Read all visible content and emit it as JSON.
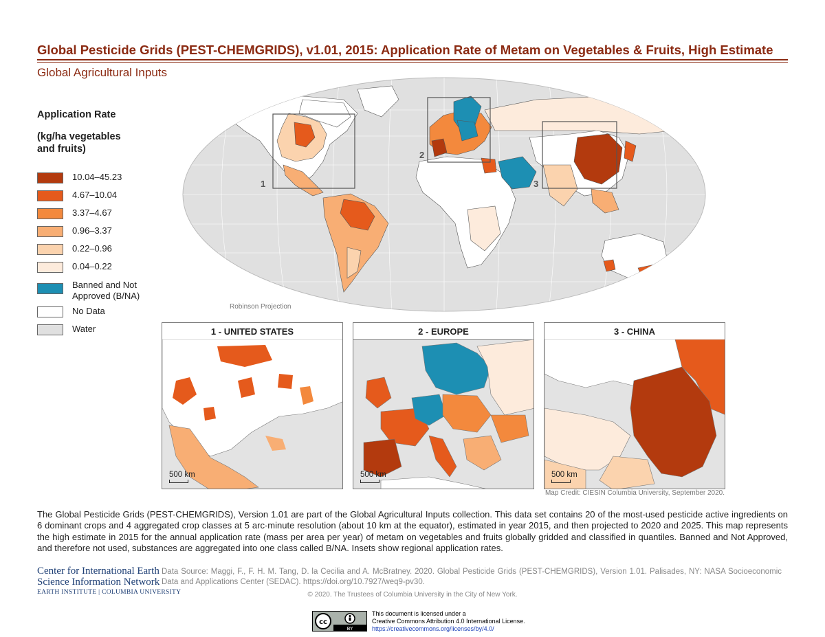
{
  "title": "Global Pesticide Grids (PEST-CHEMGRIDS), v1.01, 2015: Application Rate of Metam on Vegetables & Fruits, High Estimate",
  "subtitle": "Global Agricultural Inputs",
  "legend": {
    "title": "Application Rate",
    "unit": "(kg/ha vegetables and fruits)",
    "items": [
      {
        "label": "10.04–45.23",
        "color": "#b33a0e"
      },
      {
        "label": "4.67–10.04",
        "color": "#e55a1c"
      },
      {
        "label": "3.37–4.67",
        "color": "#f3893d"
      },
      {
        "label": "0.96–3.37",
        "color": "#f8ae74"
      },
      {
        "label": "0.22–0.96",
        "color": "#fbd3ae"
      },
      {
        "label": "0.04–0.22",
        "color": "#fdebdc"
      },
      {
        "label": "Banned and Not Approved (B/NA)",
        "color": "#1d8fb3"
      },
      {
        "label": "No Data",
        "color": "#ffffff"
      },
      {
        "label": "Water",
        "color": "#e0e0e0"
      }
    ]
  },
  "map": {
    "projection_label": "Robinson Projection",
    "inset_markers": [
      "1",
      "2",
      "3"
    ]
  },
  "insets": [
    {
      "number_title": "1  -  UNITED STATES",
      "scale": "500 km"
    },
    {
      "number_title": "2  -  EUROPE",
      "scale": "500 km"
    },
    {
      "number_title": "3  -  CHINA",
      "scale": "500 km"
    }
  ],
  "map_credit": "Map Credit: CIESIN Columbia University, September 2020.",
  "description": "The Global Pesticide Grids (PEST-CHEMGRIDS), Version 1.01 are part of the Global Agricultural Inputs collection. This data set contains 20 of the most-used pesticide active ingredients on 6 dominant crops and 4 aggregated crop classes at 5 arc-minute resolution (about 10 km at the equator), estimated in year 2015, and then projected to 2020 and 2025. This map represents the high estimate in 2015 for the annual application rate (mass per area per year) of metam on vegetables and fruits globally gridded and classified in quantiles. Banned and Not Approved, and therefore not used, substances are aggregated into one class called B/NA. Insets show regional application rates.",
  "org": {
    "line1": "Center for International Earth",
    "line2": "Science Information Network",
    "line3": "EARTH INSTITUTE | COLUMBIA UNIVERSITY"
  },
  "source": "Data Source: Maggi, F., F. H. M. Tang, D. la Cecilia and A. McBratney. 2020. Global Pesticide Grids (PEST-CHEMGRIDS), Version 1.01. Palisades, NY: NASA Socioeconomic Data and Applications Center (SEDAC). https://doi.org/10.7927/weq9-pv30.",
  "copyright": "© 2020. The Trustees of Columbia University in the City of New York.",
  "license": {
    "badge_by": "BY",
    "line1": "This document is licensed under a",
    "line2": "Creative Commons Attribution 4.0 International License.",
    "link": "https://creativecommons.org/licenses/by/4.0/"
  }
}
